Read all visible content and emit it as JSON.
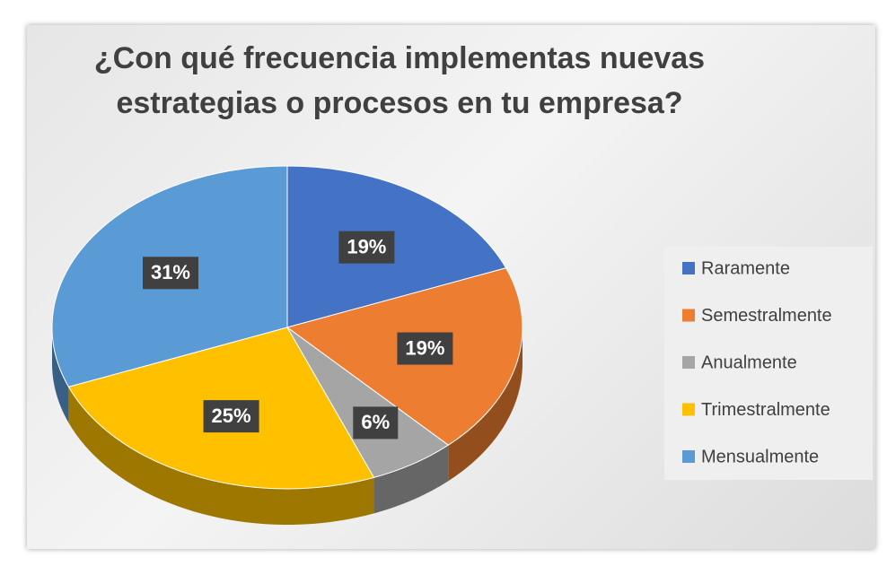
{
  "chart_data": {
    "type": "pie",
    "title": "¿Con qué frecuencia implementas nuevas estrategias o procesos en tu empresa?",
    "categories": [
      "Raramente",
      "Semestralmente",
      "Anualmente",
      "Trimestralmente",
      "Mensualmente"
    ],
    "values": [
      19,
      19,
      6,
      25,
      31
    ],
    "value_labels": [
      "19%",
      "19%",
      "6%",
      "25%",
      "31%"
    ],
    "colors": [
      "#4472c4",
      "#ed7d31",
      "#a5a5a5",
      "#ffc000",
      "#5b9bd5"
    ],
    "legend": "right"
  }
}
